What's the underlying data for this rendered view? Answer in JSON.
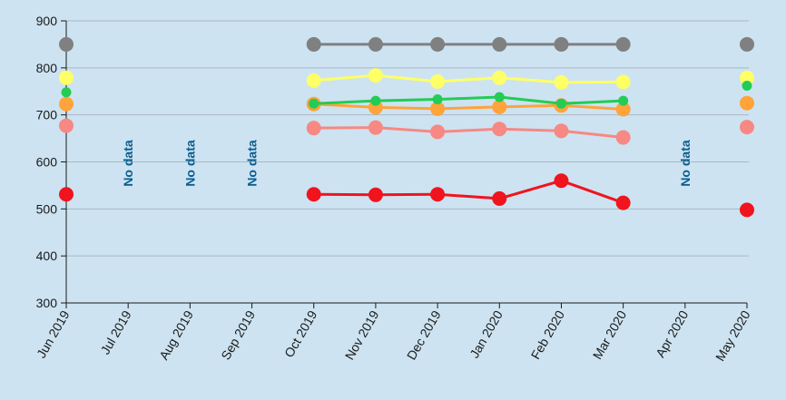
{
  "chart_data": {
    "type": "line",
    "title": "",
    "xlabel": "",
    "ylabel": "",
    "ylim": [
      300,
      900
    ],
    "yticks": [
      300,
      400,
      500,
      600,
      700,
      800,
      900
    ],
    "grid": true,
    "legend": "none",
    "categories": [
      "Jun 2019",
      "Jul 2019",
      "Aug 2019",
      "Sep 2019",
      "Oct 2019",
      "Nov 2019",
      "Dec 2019",
      "Jan 2020",
      "Feb 2020",
      "Mar 2020",
      "Apr 2020",
      "May 2020"
    ],
    "no_data_label": "No data",
    "no_data_categories": [
      "Jul 2019",
      "Aug 2019",
      "Sep 2019",
      "Apr 2020"
    ],
    "series": [
      {
        "color": "#808080",
        "marker": "large",
        "values": [
          850,
          null,
          null,
          null,
          850,
          850,
          850,
          850,
          850,
          850,
          null,
          850
        ]
      },
      {
        "color": "#ffff66",
        "marker": "large",
        "values": [
          779,
          null,
          null,
          null,
          773,
          784,
          771,
          779,
          769,
          770,
          null,
          779
        ]
      },
      {
        "color": "#ffa33a",
        "marker": "large",
        "values": [
          723,
          null,
          null,
          null,
          723,
          716,
          713,
          717,
          720,
          712,
          null,
          725
        ]
      },
      {
        "color": "#22cc55",
        "marker": "small",
        "values": [
          748,
          null,
          null,
          null,
          724,
          730,
          733,
          738,
          724,
          730,
          null,
          762
        ]
      },
      {
        "color": "#f78884",
        "marker": "large",
        "values": [
          677,
          null,
          null,
          null,
          672,
          673,
          664,
          670,
          666,
          652,
          null,
          674
        ]
      },
      {
        "color": "#f0141e",
        "marker": "large",
        "values": [
          531,
          null,
          null,
          null,
          531,
          530,
          531,
          522,
          560,
          513,
          null,
          498
        ]
      }
    ]
  }
}
